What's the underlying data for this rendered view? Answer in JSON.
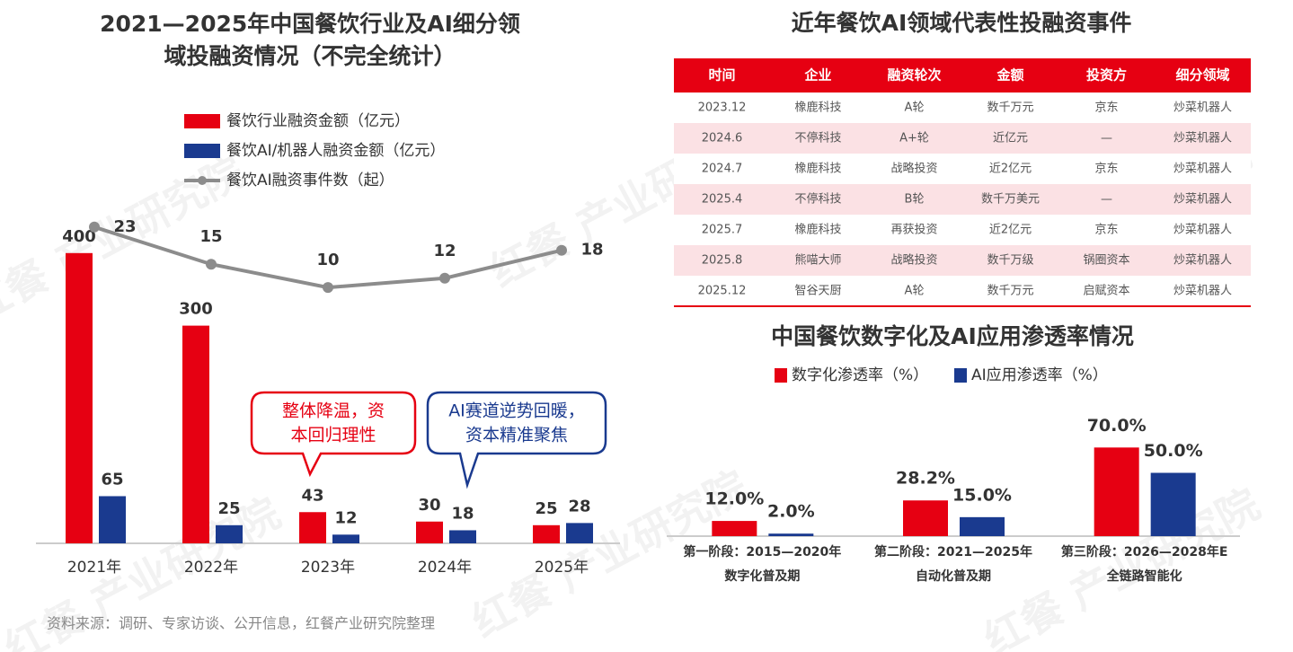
{
  "chart_data": [
    {
      "type": "bar",
      "title": [
        "2021—2025年中国餐饮行业及AI细分领",
        "域投融资情况（不完全统计）"
      ],
      "categories": [
        "2021年",
        "2022年",
        "2023年",
        "2024年",
        "2025年"
      ],
      "series": [
        {
          "name": "餐饮行业融资金额（亿元）",
          "color": "#e60012",
          "values": [
            400,
            300,
            43,
            30,
            25
          ]
        },
        {
          "name": "餐饮AI/机器人融资金额（亿元）",
          "color": "#1a3a8f",
          "values": [
            65,
            25,
            12,
            18,
            28
          ]
        },
        {
          "name": "餐饮AI融资事件数（起）",
          "color": "#8c8c8c",
          "type": "line",
          "axis": "y2",
          "values": [
            23,
            15,
            10,
            12,
            18
          ]
        }
      ],
      "ylim": [
        0,
        500
      ],
      "y2lim": [
        -45,
        33
      ],
      "legend": "top",
      "annotations": [
        {
          "lines": [
            "整体降温，资",
            "本回归理性"
          ],
          "color": "#e60012"
        },
        {
          "lines": [
            "AI赛道逆势回暖，",
            "资本精准聚焦"
          ],
          "color": "#1a3a8f"
        }
      ]
    },
    {
      "type": "bar",
      "title": "中国餐饮数字化及AI应用渗透率情况",
      "categories": [
        "第一阶段：2015—2020年",
        "第二阶段：2021—2025年",
        "第三阶段：2026—2028年E"
      ],
      "sublabels": [
        "数字化普及期",
        "自动化普及期",
        "全链路智能化"
      ],
      "series": [
        {
          "name": "数字化渗透率（%）",
          "color": "#e60012",
          "values": [
            12.0,
            28.2,
            70.0
          ],
          "value_labels": [
            "12.0%",
            "28.2%",
            "70.0%"
          ]
        },
        {
          "name": "AI应用渗透率（%）",
          "color": "#1a3a8f",
          "values": [
            2.0,
            15.0,
            50.0
          ],
          "value_labels": [
            "2.0%",
            "15.0%",
            "50.0%"
          ]
        }
      ],
      "ylim": [
        0,
        100
      ],
      "legend": "top"
    }
  ],
  "table": {
    "title": "近年餐饮AI领域代表性投融资事件",
    "header": [
      "时间",
      "企业",
      "融资轮次",
      "金额",
      "投资方",
      "细分领域"
    ],
    "rows": [
      [
        "2023.12",
        "橡鹿科技",
        "A轮",
        "数千万元",
        "京东",
        "炒菜机器人"
      ],
      [
        "2024.6",
        "不停科技",
        "A+轮",
        "近亿元",
        "—",
        "炒菜机器人"
      ],
      [
        "2024.7",
        "橡鹿科技",
        "战略投资",
        "近2亿元",
        "京东",
        "炒菜机器人"
      ],
      [
        "2025.4",
        "不停科技",
        "B轮",
        "数千万美元",
        "—",
        "炒菜机器人"
      ],
      [
        "2025.7",
        "橡鹿科技",
        "再获投资",
        "近2亿元",
        "京东",
        "炒菜机器人"
      ],
      [
        "2025.8",
        "熊喵大师",
        "战略投资",
        "数千万级",
        "锅圈资本",
        "炒菜机器人"
      ],
      [
        "2025.12",
        "智谷天厨",
        "A轮",
        "数千万元",
        "启赋资本",
        "炒菜机器人"
      ]
    ]
  },
  "source": "资料来源：调研、专家访谈、公开信息，红餐产业研究院整理",
  "watermark": "红餐 产业研究院"
}
